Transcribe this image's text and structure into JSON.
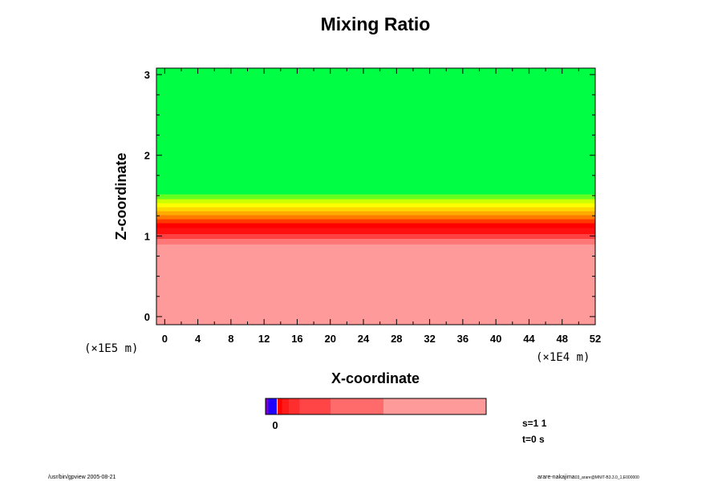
{
  "chart_data": {
    "type": "heatmap",
    "title": "Mixing Ratio",
    "xlabel": "X-coordinate",
    "ylabel": "Z-coordinate",
    "x_scale_label": "(×1E4 m)",
    "y_scale_label": "(×1E5 m)",
    "xlim": [
      -1,
      52
    ],
    "ylim": [
      -0.1,
      3.08
    ],
    "x_ticks": [
      "0",
      "4",
      "8",
      "12",
      "16",
      "20",
      "24",
      "28",
      "32",
      "36",
      "40",
      "44",
      "48",
      "52"
    ],
    "y_ticks": [
      "0",
      "1",
      "2",
      "3"
    ],
    "z_layers": [
      {
        "z0": -0.1,
        "z1": 0.9,
        "color": "#ff9a9a"
      },
      {
        "z0": 0.9,
        "z1": 0.97,
        "color": "#ff7777"
      },
      {
        "z0": 0.97,
        "z1": 1.03,
        "color": "#ff4040"
      },
      {
        "z0": 1.03,
        "z1": 1.1,
        "color": "#ff1010"
      },
      {
        "z0": 1.1,
        "z1": 1.16,
        "color": "#ff0000"
      },
      {
        "z0": 1.16,
        "z1": 1.21,
        "color": "#ff3a00"
      },
      {
        "z0": 1.21,
        "z1": 1.26,
        "color": "#ff7a00"
      },
      {
        "z0": 1.26,
        "z1": 1.31,
        "color": "#ffaa00"
      },
      {
        "z0": 1.31,
        "z1": 1.36,
        "color": "#ffd800"
      },
      {
        "z0": 1.36,
        "z1": 1.41,
        "color": "#ffff00"
      },
      {
        "z0": 1.41,
        "z1": 1.46,
        "color": "#ccff00"
      },
      {
        "z0": 1.46,
        "z1": 1.52,
        "color": "#66ff22"
      },
      {
        "z0": 1.52,
        "z1": 3.08,
        "color": "#00ff44"
      }
    ],
    "colorbar": {
      "label": "0",
      "segments": [
        {
          "w": 0.012,
          "color": "#7a00c8"
        },
        {
          "w": 0.038,
          "color": "#2000ff"
        },
        {
          "w": 0.005,
          "color": "#ffffff"
        },
        {
          "w": 0.02,
          "color": "#ff0000"
        },
        {
          "w": 0.03,
          "color": "#ff1a1a"
        },
        {
          "w": 0.05,
          "color": "#ff2e2e"
        },
        {
          "w": 0.14,
          "color": "#ff4545"
        },
        {
          "w": 0.24,
          "color": "#ff6a6a"
        },
        {
          "w": 0.465,
          "color": "#ff9a9a"
        }
      ]
    }
  },
  "info": {
    "s": "s=1 1",
    "t": "t=0 s"
  },
  "footer": {
    "left": "/usr/bin/gpview 2005-08-21",
    "right_main": "arare-nakajima",
    "right_small": "03_arare@MNIT-B3.3.0_1,E000000"
  }
}
